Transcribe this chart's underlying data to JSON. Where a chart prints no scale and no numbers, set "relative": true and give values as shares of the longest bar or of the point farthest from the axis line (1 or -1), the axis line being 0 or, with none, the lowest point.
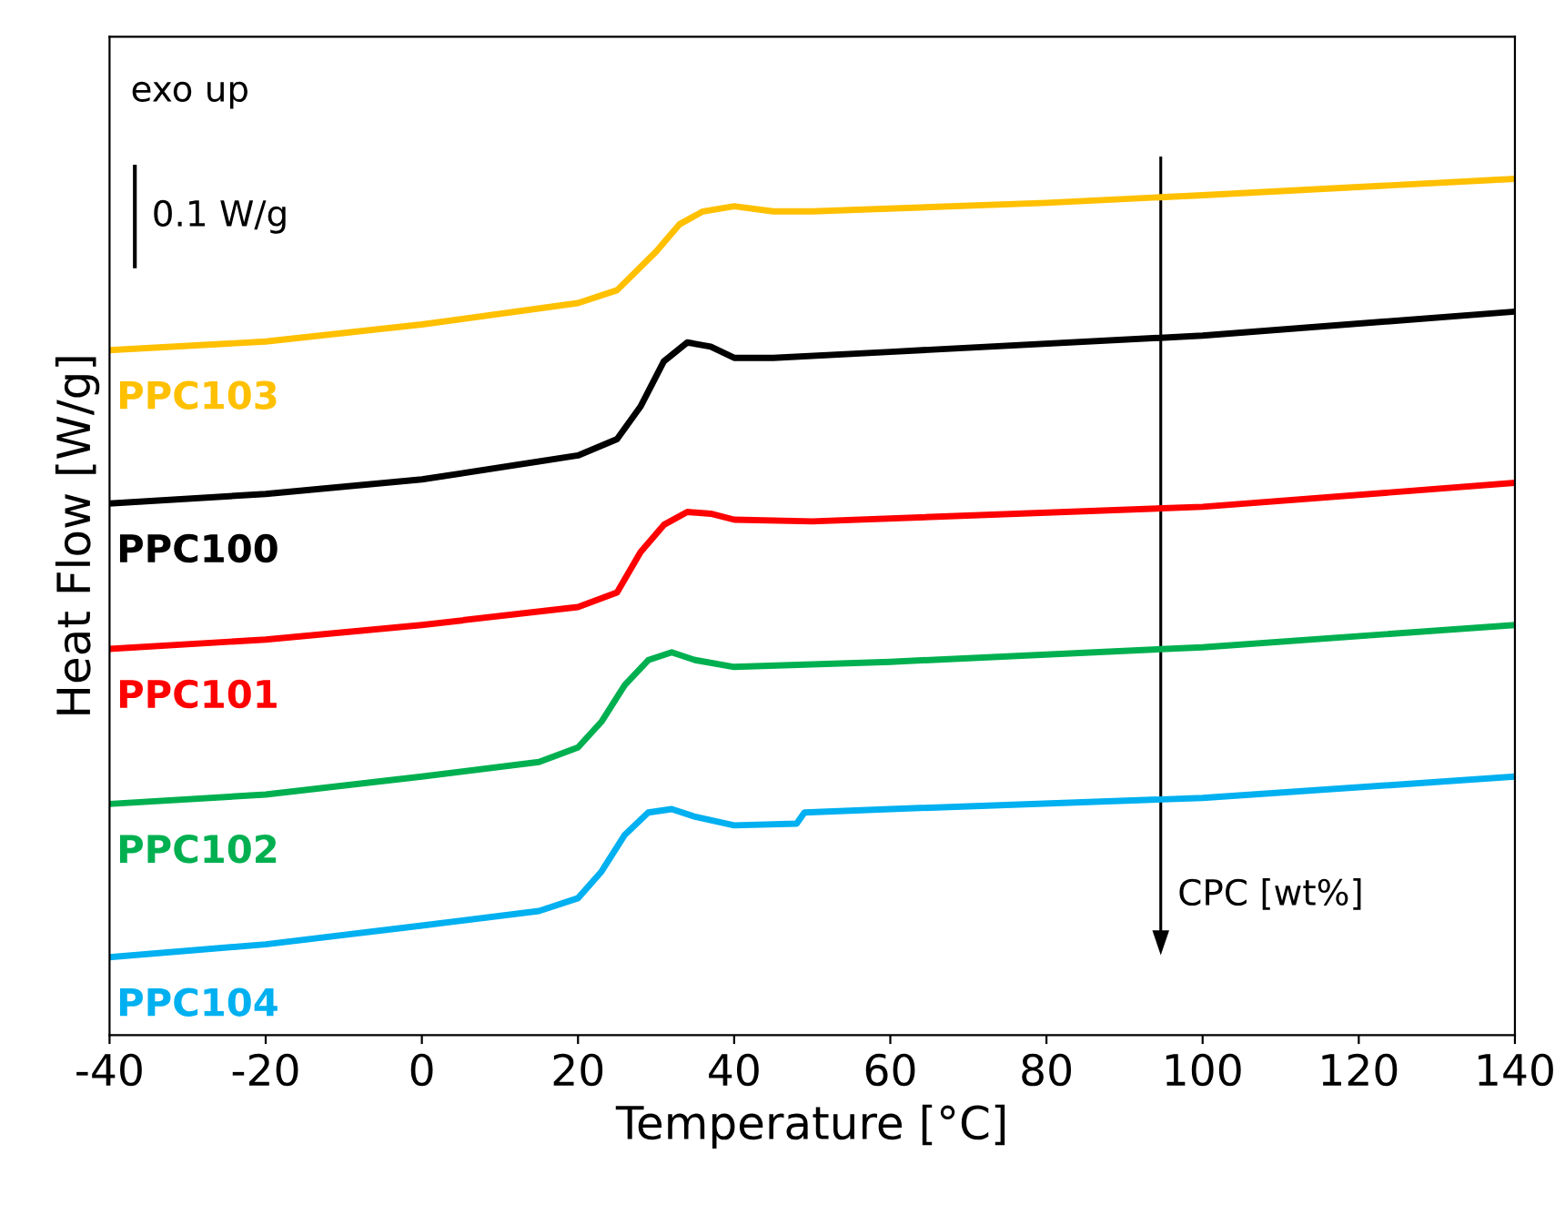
{
  "chart_data": {
    "type": "line",
    "relative": true,
    "xlabel": "Temperature [°C]",
    "ylabel": "Heat Flow [W/g]",
    "xlim": [
      -40,
      140
    ],
    "xticks": [
      -40,
      -20,
      0,
      20,
      40,
      60,
      80,
      100,
      120,
      140
    ],
    "tick_labels": "x",
    "grid": false,
    "legend": false,
    "marker": "none",
    "line_style": "solid",
    "annotations": [
      "exo up",
      "0.1 W/g",
      "CPC [wt%]"
    ],
    "series": [
      {
        "name": "PPC103",
        "color": "#ffc000",
        "x": [
          -40,
          -20,
          0,
          20,
          25,
          30,
          33,
          36,
          40,
          45,
          50,
          80,
          100,
          140
        ],
        "values": [
          0.8,
          0.81,
          0.83,
          0.855,
          0.87,
          0.915,
          0.947,
          0.962,
          0.968,
          0.962,
          0.962,
          0.972,
          0.981,
          1.0
        ]
      },
      {
        "name": "PPC100",
        "color": "#000000",
        "x": [
          -40,
          -20,
          0,
          20,
          25,
          28,
          31,
          34,
          37,
          40,
          45,
          60,
          100,
          140
        ],
        "values": [
          0.621,
          0.632,
          0.649,
          0.677,
          0.696,
          0.734,
          0.787,
          0.809,
          0.804,
          0.791,
          0.791,
          0.798,
          0.817,
          0.845
        ]
      },
      {
        "name": "PPC101",
        "color": "#ff0000",
        "x": [
          -40,
          -20,
          0,
          20,
          25,
          28,
          31,
          34,
          37,
          40,
          50,
          100,
          140
        ],
        "values": [
          0.451,
          0.462,
          0.479,
          0.5,
          0.517,
          0.564,
          0.596,
          0.611,
          0.609,
          0.602,
          0.6,
          0.617,
          0.645
        ]
      },
      {
        "name": "PPC102",
        "color": "#00b050",
        "x": [
          -40,
          -20,
          0,
          15,
          20,
          23,
          26,
          29,
          32,
          35,
          40,
          60,
          100,
          140
        ],
        "values": [
          0.27,
          0.281,
          0.302,
          0.319,
          0.336,
          0.366,
          0.409,
          0.438,
          0.447,
          0.438,
          0.43,
          0.436,
          0.453,
          0.479
        ]
      },
      {
        "name": "PPC104",
        "color": "#00b0f0",
        "x": [
          -40,
          -20,
          0,
          15,
          20,
          23,
          26,
          29,
          32,
          35,
          40,
          48,
          49,
          60,
          100,
          140
        ],
        "values": [
          0.091,
          0.106,
          0.128,
          0.145,
          0.16,
          0.191,
          0.234,
          0.26,
          0.264,
          0.255,
          0.245,
          0.247,
          0.26,
          0.264,
          0.277,
          0.302
        ]
      }
    ]
  }
}
